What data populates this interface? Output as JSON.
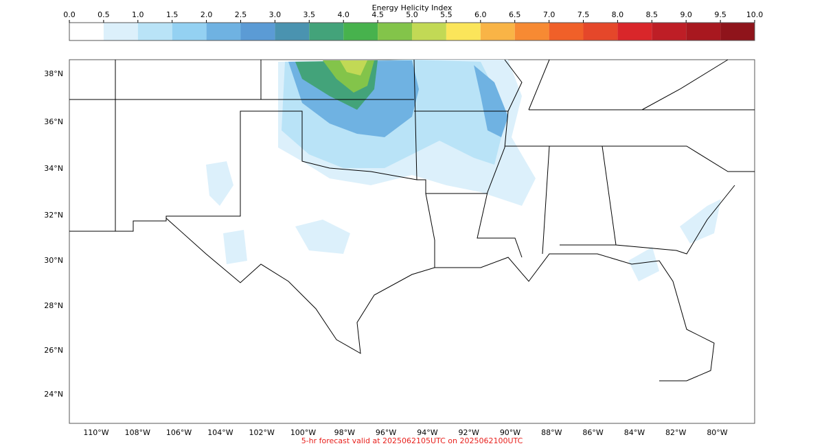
{
  "colorbar": {
    "label": "Energy Helicity Index",
    "ticks": [
      {
        "value": 0,
        "label": "0.0"
      },
      0.5,
      {
        "value": 1,
        "label": "1.0"
      },
      1.5,
      {
        "value": 2,
        "label": "2.0"
      },
      2.5,
      {
        "value": 3,
        "label": "3.0"
      },
      3.5,
      {
        "value": 4,
        "label": "4.0"
      },
      4.5,
      {
        "value": 5,
        "label": "5.0"
      },
      5.5,
      {
        "value": 6,
        "label": "6.0"
      },
      6.5,
      {
        "value": 7,
        "label": "7.0"
      },
      7.5,
      {
        "value": 8,
        "label": "8.0"
      },
      8.5,
      {
        "value": 9,
        "label": "9.0"
      },
      9.5,
      {
        "value": 10,
        "label": "10.0"
      }
    ],
    "colors": [
      "#ffffff",
      "#dcf0fb",
      "#b9e3f7",
      "#94d1f2",
      "#6fb2e2",
      "#5b9bd5",
      "#4a93b0",
      "#43a37a",
      "#47b24d",
      "#83c44a",
      "#c2d955",
      "#fbe55a",
      "#f9b446",
      "#f78a33",
      "#f06029",
      "#e5472a",
      "#d9262a",
      "#be1e26",
      "#a8181f",
      "#8f141b"
    ]
  },
  "lat_labels": [
    "38°N",
    "36°N",
    "34°N",
    "32°N",
    "30°N",
    "28°N",
    "26°N",
    "24°N"
  ],
  "lon_labels": [
    "110°W",
    "108°W",
    "106°W",
    "104°W",
    "102°W",
    "100°W",
    "98°W",
    "96°W",
    "94°W",
    "92°W",
    "90°W",
    "88°W",
    "86°W",
    "84°W",
    "82°W",
    "80°W"
  ],
  "footer": "5-hr forecast valid at 2025062105UTC on 2025062100UTC"
}
